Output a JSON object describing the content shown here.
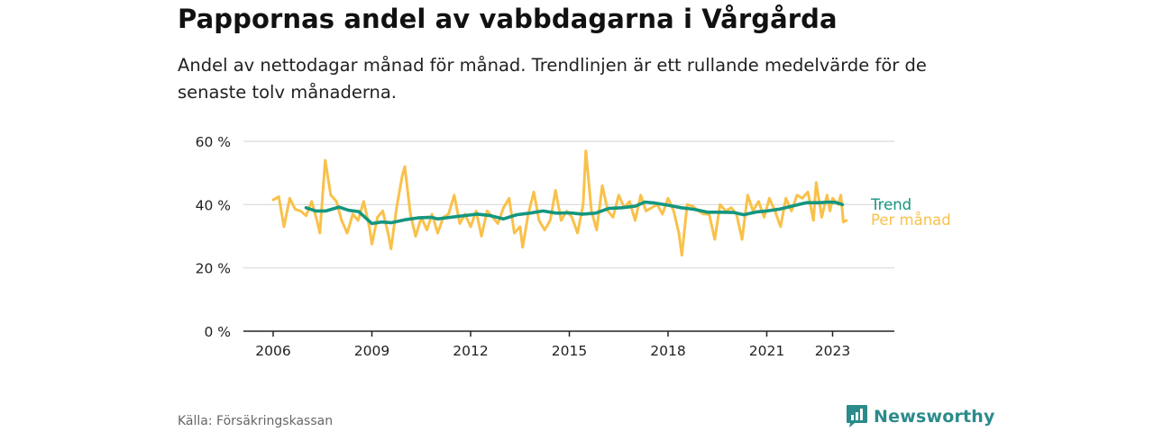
{
  "header": {
    "title": "Pappornas andel av vabbdagarna i Vårgårda",
    "subtitle": "Andel av nettodagar månad för månad. Trendlinjen är ett rullande medelvärde för de senaste tolv månaderna."
  },
  "footer": {
    "source": "Källa: Försäkringskassan",
    "brand": "Newsworthy",
    "brand_icon": "bar-chart-logo-icon"
  },
  "colors": {
    "monthly": "#f9c14a",
    "trend": "#14967f",
    "grid": "#d9d9d9",
    "axis": "#222222",
    "brand": "#2b8b8b"
  },
  "chart_data": {
    "type": "line",
    "ylim": [
      0,
      60
    ],
    "yticks": [
      0,
      20,
      40,
      60
    ],
    "ytick_labels": [
      "0 %",
      "20 %",
      "40 %",
      "60 %"
    ],
    "xticks": [
      2006,
      2009,
      2012,
      2015,
      2018,
      2021,
      2023
    ],
    "xtick_labels": [
      "2006",
      "2009",
      "2012",
      "2015",
      "2018",
      "2021",
      "2023"
    ],
    "grid": true,
    "legend": "inline-right",
    "series": [
      {
        "name": "Trend",
        "color": "#14967f",
        "points": [
          [
            2007.0,
            39.0
          ],
          [
            2007.3,
            38.0
          ],
          [
            2007.6,
            38.0
          ],
          [
            2008.0,
            39.2
          ],
          [
            2008.3,
            38.2
          ],
          [
            2008.6,
            37.8
          ],
          [
            2009.0,
            34.0
          ],
          [
            2009.3,
            34.5
          ],
          [
            2009.6,
            34.3
          ],
          [
            2010.0,
            35.2
          ],
          [
            2010.4,
            35.8
          ],
          [
            2010.8,
            36.0
          ],
          [
            2011.0,
            35.5
          ],
          [
            2011.4,
            36.0
          ],
          [
            2011.8,
            36.5
          ],
          [
            2012.2,
            37.0
          ],
          [
            2012.6,
            36.5
          ],
          [
            2013.0,
            35.5
          ],
          [
            2013.4,
            36.8
          ],
          [
            2013.8,
            37.3
          ],
          [
            2014.2,
            38.0
          ],
          [
            2014.6,
            37.3
          ],
          [
            2015.0,
            37.4
          ],
          [
            2015.4,
            37.0
          ],
          [
            2015.8,
            37.3
          ],
          [
            2016.2,
            38.8
          ],
          [
            2016.6,
            39.0
          ],
          [
            2017.0,
            39.5
          ],
          [
            2017.3,
            40.8
          ],
          [
            2017.6,
            40.5
          ],
          [
            2018.0,
            39.8
          ],
          [
            2018.4,
            39.0
          ],
          [
            2018.8,
            38.5
          ],
          [
            2019.2,
            37.6
          ],
          [
            2019.6,
            37.6
          ],
          [
            2020.0,
            37.5
          ],
          [
            2020.3,
            36.8
          ],
          [
            2020.7,
            37.7
          ],
          [
            2021.0,
            38.0
          ],
          [
            2021.4,
            38.6
          ],
          [
            2021.8,
            39.6
          ],
          [
            2022.2,
            40.6
          ],
          [
            2022.6,
            40.6
          ],
          [
            2022.9,
            40.8
          ],
          [
            2023.1,
            40.7
          ],
          [
            2023.3,
            40.0
          ]
        ]
      },
      {
        "name": "Per månad",
        "color": "#f9c14a",
        "points": [
          [
            2006.0,
            41.5
          ],
          [
            2006.17,
            42.5
          ],
          [
            2006.33,
            33.0
          ],
          [
            2006.5,
            42.0
          ],
          [
            2006.67,
            38.5
          ],
          [
            2006.83,
            38.0
          ],
          [
            2007.0,
            36.5
          ],
          [
            2007.17,
            41.0
          ],
          [
            2007.33,
            35.0
          ],
          [
            2007.42,
            31.0
          ],
          [
            2007.58,
            54.0
          ],
          [
            2007.75,
            43.0
          ],
          [
            2007.92,
            41.0
          ],
          [
            2008.08,
            35.0
          ],
          [
            2008.25,
            31.0
          ],
          [
            2008.42,
            37.0
          ],
          [
            2008.58,
            35.0
          ],
          [
            2008.75,
            41.0
          ],
          [
            2008.92,
            33.0
          ],
          [
            2009.0,
            27.5
          ],
          [
            2009.17,
            36.0
          ],
          [
            2009.33,
            38.0
          ],
          [
            2009.5,
            30.5
          ],
          [
            2009.58,
            26.0
          ],
          [
            2009.75,
            39.0
          ],
          [
            2009.92,
            49.0
          ],
          [
            2010.0,
            52.0
          ],
          [
            2010.17,
            37.0
          ],
          [
            2010.33,
            30.0
          ],
          [
            2010.5,
            36.0
          ],
          [
            2010.67,
            32.0
          ],
          [
            2010.83,
            37.0
          ],
          [
            2011.0,
            31.0
          ],
          [
            2011.17,
            36.0
          ],
          [
            2011.33,
            37.0
          ],
          [
            2011.5,
            43.0
          ],
          [
            2011.67,
            34.0
          ],
          [
            2011.83,
            37.0
          ],
          [
            2012.0,
            33.0
          ],
          [
            2012.17,
            38.0
          ],
          [
            2012.33,
            30.0
          ],
          [
            2012.5,
            38.0
          ],
          [
            2012.67,
            36.0
          ],
          [
            2012.83,
            34.0
          ],
          [
            2013.0,
            39.0
          ],
          [
            2013.17,
            42.0
          ],
          [
            2013.33,
            31.0
          ],
          [
            2013.5,
            33.0
          ],
          [
            2013.58,
            26.5
          ],
          [
            2013.75,
            37.0
          ],
          [
            2013.92,
            44.0
          ],
          [
            2014.08,
            35.0
          ],
          [
            2014.25,
            32.0
          ],
          [
            2014.42,
            35.0
          ],
          [
            2014.58,
            44.5
          ],
          [
            2014.75,
            35.0
          ],
          [
            2014.92,
            38.0
          ],
          [
            2015.08,
            36.0
          ],
          [
            2015.25,
            31.0
          ],
          [
            2015.42,
            40.0
          ],
          [
            2015.5,
            57.0
          ],
          [
            2015.67,
            38.0
          ],
          [
            2015.83,
            32.0
          ],
          [
            2016.0,
            46.0
          ],
          [
            2016.17,
            38.0
          ],
          [
            2016.33,
            36.0
          ],
          [
            2016.5,
            43.0
          ],
          [
            2016.67,
            39.0
          ],
          [
            2016.83,
            41.0
          ],
          [
            2017.0,
            35.0
          ],
          [
            2017.17,
            43.0
          ],
          [
            2017.33,
            38.0
          ],
          [
            2017.5,
            39.0
          ],
          [
            2017.67,
            40.0
          ],
          [
            2017.83,
            37.0
          ],
          [
            2018.0,
            42.0
          ],
          [
            2018.17,
            38.0
          ],
          [
            2018.33,
            31.0
          ],
          [
            2018.42,
            24.0
          ],
          [
            2018.58,
            40.0
          ],
          [
            2018.75,
            39.5
          ],
          [
            2018.92,
            38.0
          ],
          [
            2019.08,
            37.0
          ],
          [
            2019.25,
            37.0
          ],
          [
            2019.42,
            29.0
          ],
          [
            2019.58,
            40.0
          ],
          [
            2019.75,
            38.0
          ],
          [
            2019.92,
            39.0
          ],
          [
            2020.08,
            37.0
          ],
          [
            2020.25,
            29.0
          ],
          [
            2020.42,
            43.0
          ],
          [
            2020.58,
            38.0
          ],
          [
            2020.75,
            41.0
          ],
          [
            2020.92,
            36.0
          ],
          [
            2021.08,
            42.0
          ],
          [
            2021.25,
            38.0
          ],
          [
            2021.42,
            33.0
          ],
          [
            2021.58,
            42.0
          ],
          [
            2021.75,
            38.0
          ],
          [
            2021.92,
            43.0
          ],
          [
            2022.08,
            42.0
          ],
          [
            2022.25,
            44.0
          ],
          [
            2022.42,
            35.0
          ],
          [
            2022.5,
            47.0
          ],
          [
            2022.67,
            36.0
          ],
          [
            2022.83,
            43.0
          ],
          [
            2022.92,
            38.0
          ],
          [
            2023.0,
            42.0
          ],
          [
            2023.17,
            40.0
          ],
          [
            2023.25,
            43.0
          ],
          [
            2023.33,
            34.5
          ],
          [
            2023.42,
            35.0
          ]
        ]
      }
    ]
  }
}
